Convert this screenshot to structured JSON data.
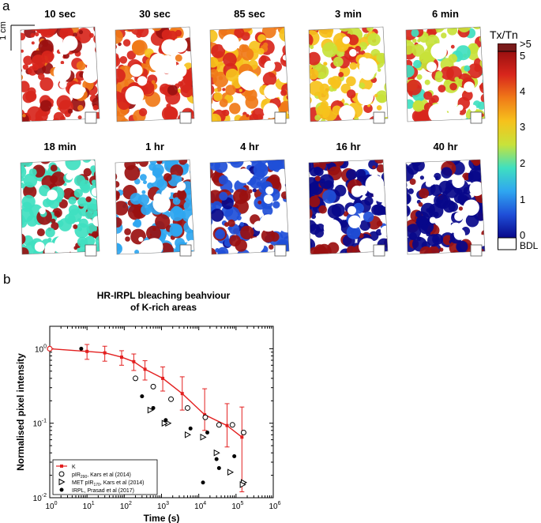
{
  "figure": {
    "panel_a_label": "a",
    "panel_b_label": "b",
    "scale_bar_label": "1 cm",
    "tiles": [
      {
        "label": "10 sec",
        "stage": 0
      },
      {
        "label": "30 sec",
        "stage": 1
      },
      {
        "label": "85 sec",
        "stage": 2
      },
      {
        "label": "3 min",
        "stage": 3
      },
      {
        "label": "6 min",
        "stage": 4
      },
      {
        "label": "18 min",
        "stage": 5
      },
      {
        "label": "1 hr",
        "stage": 6
      },
      {
        "label": "4 hr",
        "stage": 7
      },
      {
        "label": "16 hr",
        "stage": 8
      },
      {
        "label": "40 hr",
        "stage": 9
      }
    ],
    "colorbar": {
      "title": "Tx/Tn",
      "top_label": ">5",
      "ticks": [
        "5",
        "4",
        "3",
        "2",
        "1",
        "0"
      ],
      "bottom_label": "BDL",
      "top_color": "#7a1a1a",
      "colors": [
        "#08088a",
        "#1f4fd8",
        "#2fa6f0",
        "#3fe0c0",
        "#c8e23a",
        "#f6c21c",
        "#f07a18",
        "#d8261c",
        "#9a1010"
      ]
    }
  },
  "chart_data": {
    "type": "scatter",
    "title": "HR-IRPL bleaching beahviour of K-rich areas",
    "title_line1": "HR-IRPL bleaching beahviour",
    "title_line2": "of K-rich areas",
    "xlabel": "Time (s)",
    "ylabel": "Normalised pixel intensity",
    "xscale": "log",
    "yscale": "log",
    "xlim": [
      1,
      1000000
    ],
    "ylim": [
      0.01,
      2
    ],
    "x_tick_labels": [
      {
        "base": "10",
        "exp": "0",
        "value": 1
      },
      {
        "base": "10",
        "exp": "1",
        "value": 10
      },
      {
        "base": "10",
        "exp": "2",
        "value": 100
      },
      {
        "base": "10",
        "exp": "3",
        "value": 1000
      },
      {
        "base": "10",
        "exp": "4",
        "value": 10000
      },
      {
        "base": "10",
        "exp": "5",
        "value": 100000
      },
      {
        "base": "10",
        "exp": "6",
        "value": 1000000
      }
    ],
    "y_tick_labels": [
      {
        "base": "10",
        "exp": "-2",
        "value": 0.01
      },
      {
        "base": "10",
        "exp": "-1",
        "value": 0.1
      },
      {
        "base": "10",
        "exp": "0",
        "value": 1
      }
    ],
    "series": [
      {
        "name": "K",
        "marker": "circle-open-red-line",
        "color": "#e32020",
        "x": [
          1,
          10,
          30,
          85,
          180,
          360,
          1080,
          3600,
          14400,
          57600,
          144000
        ],
        "y": [
          1.0,
          0.92,
          0.88,
          0.77,
          0.67,
          0.53,
          0.4,
          0.25,
          0.13,
          0.093,
          0.065
        ],
        "err_low": [
          0,
          0.2,
          0.2,
          0.17,
          0.16,
          0.15,
          0.13,
          0.1,
          0.05,
          0.045,
          0.053
        ],
        "err_high": [
          0,
          0.22,
          0.2,
          0.17,
          0.18,
          0.16,
          0.17,
          0.17,
          0.16,
          0.09,
          0.1
        ]
      },
      {
        "name": "pIR290, Kars et al (2014)",
        "marker": "circle-open",
        "x": [
          200,
          600,
          1800,
          5000,
          15000,
          35000,
          80000,
          160000
        ],
        "y": [
          0.4,
          0.31,
          0.21,
          0.16,
          0.12,
          0.095,
          0.095,
          0.075
        ]
      },
      {
        "name": "MET pIR170, Kars et al (2014)",
        "marker": "triangle-right-open",
        "x": [
          500,
          1500,
          5000,
          13000,
          30000,
          70000,
          160000
        ],
        "y": [
          0.15,
          0.1,
          0.07,
          0.065,
          0.04,
          0.022,
          0.016
        ]
      },
      {
        "name": "IRPL, Prasad et al (2017)",
        "marker": "dot-filled",
        "x": [
          7,
          300,
          1300,
          6000,
          17000,
          30000,
          90000
        ],
        "y": [
          1.0,
          0.23,
          0.11,
          0.085,
          0.075,
          0.033,
          0.036
        ]
      }
    ],
    "extra_points": [
      {
        "series": 2,
        "x": 1200,
        "y": 0.1
      },
      {
        "series": 3,
        "x": 600,
        "y": 0.16
      },
      {
        "series": 3,
        "x": 35000,
        "y": 0.025
      },
      {
        "series": 3,
        "x": 13000,
        "y": 0.016
      },
      {
        "series": 2,
        "x": 150000,
        "y": 0.015
      }
    ],
    "legend": {
      "placement": "bottom-left",
      "entries": [
        {
          "text": "K"
        },
        {
          "text_pre": "pIR",
          "sub": "290",
          "text_post": ", Kars et al (2014)"
        },
        {
          "text_pre": "MET pIR",
          "sub": "170",
          "text_post": ", Kars et al (2014)"
        },
        {
          "text": "IRPL, Prasad et al (2017)"
        }
      ]
    }
  }
}
